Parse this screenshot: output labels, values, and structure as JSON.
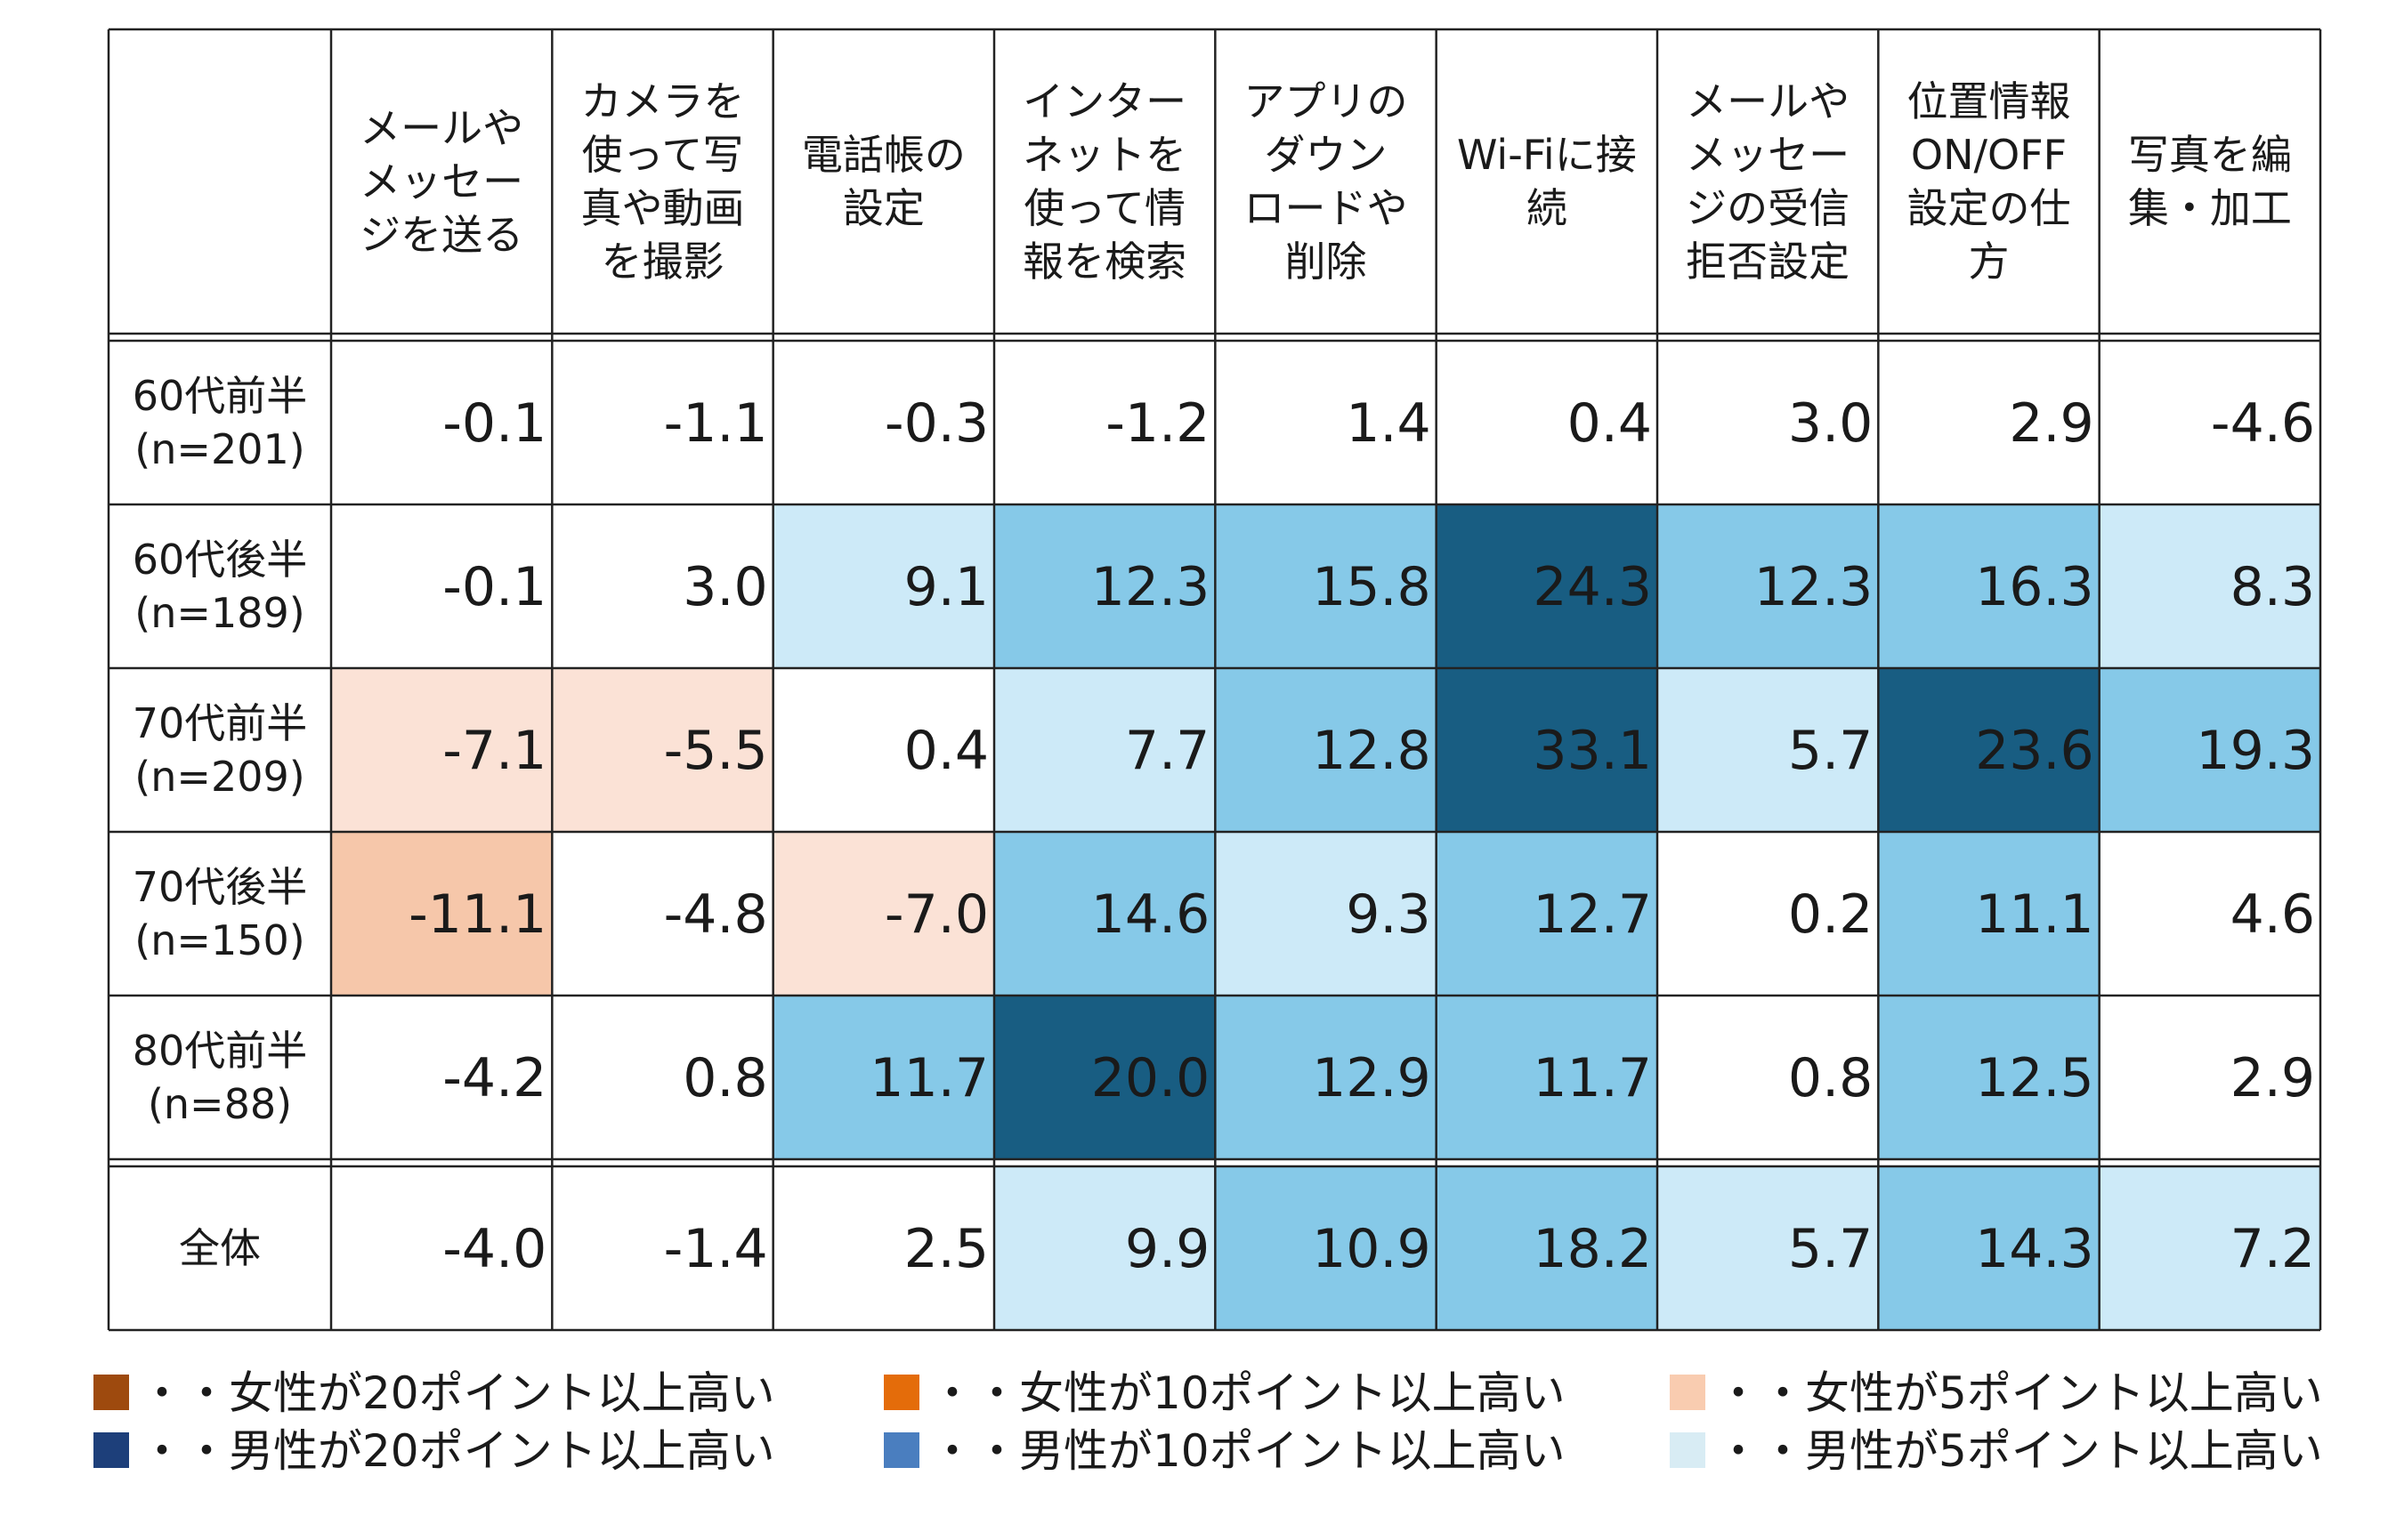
{
  "chart_data": {
    "type": "heatmap",
    "columns": [
      [
        "メールや",
        "メッセー",
        "ジを送る"
      ],
      [
        "カメラを",
        "使って写",
        "真や動画",
        "を撮影"
      ],
      [
        "電話帳の",
        "設定"
      ],
      [
        "インター",
        "ネットを",
        "使って情",
        "報を検索"
      ],
      [
        "アプリの",
        "ダウン",
        "ロードや",
        "削除"
      ],
      [
        "Wi-Fiに接",
        "続"
      ],
      [
        "メールや",
        "メッセー",
        "ジの受信",
        "拒否設定"
      ],
      [
        "位置情報",
        "ON/OFF",
        "設定の仕",
        "方"
      ],
      [
        "写真を編",
        "集・加工"
      ]
    ],
    "rows": [
      {
        "label": [
          "60代前半",
          "(n=201)"
        ],
        "values": [
          "-0.1",
          "-1.1",
          "-0.3",
          "-1.2",
          "1.4",
          "0.4",
          "3.0",
          "2.9",
          "-4.6"
        ]
      },
      {
        "label": [
          "60代後半",
          "(n=189)"
        ],
        "values": [
          "-0.1",
          "3.0",
          "9.1",
          "12.3",
          "15.8",
          "24.3",
          "12.3",
          "16.3",
          "8.3"
        ]
      },
      {
        "label": [
          "70代前半",
          "(n=209)"
        ],
        "values": [
          "-7.1",
          "-5.5",
          "0.4",
          "7.7",
          "12.8",
          "33.1",
          "5.7",
          "23.6",
          "19.3"
        ]
      },
      {
        "label": [
          "70代後半",
          "(n=150)"
        ],
        "values": [
          "-11.1",
          "-4.8",
          "-7.0",
          "14.6",
          "9.3",
          "12.7",
          "0.2",
          "11.1",
          "4.6"
        ]
      },
      {
        "label": [
          "80代前半",
          "(n=88)"
        ],
        "values": [
          "-4.2",
          "0.8",
          "11.7",
          "20.0",
          "12.9",
          "11.7",
          "0.8",
          "12.5",
          "2.9"
        ]
      }
    ],
    "total": {
      "label": [
        "全体"
      ],
      "values": [
        "-4.0",
        "-1.4",
        "2.5",
        "9.9",
        "10.9",
        "18.2",
        "5.7",
        "14.3",
        "7.2"
      ]
    },
    "colors": {
      "female20": "#9e4a0e",
      "female10": "#e46c0a",
      "female5": "#f9ccb0",
      "male20": "#1d3f7a",
      "male10": "#4a7ebf",
      "male5": "#d8ecf4"
    },
    "cell_colors": {
      "female10": "#f6c7aa",
      "female5": "#fbe2d6",
      "male20": "#185d82",
      "male10": "#86c9e8",
      "male5": "#cdeaf8",
      "text_light": "#ffffff",
      "text_dark": "#1a1a1a"
    },
    "legend": [
      {
        "color_key": "female20",
        "label": "・・女性が20ポイント以上高い"
      },
      {
        "color_key": "female10",
        "label": "・・女性が10ポイント以上高い"
      },
      {
        "color_key": "female5",
        "label": "・・女性が5ポイント以上高い"
      },
      {
        "color_key": "male20",
        "label": "・・男性が20ポイント以上高い"
      },
      {
        "color_key": "male10",
        "label": "・・男性が10ポイント以上高い"
      },
      {
        "color_key": "male5",
        "label": "・・男性が5ポイント以上高い"
      }
    ]
  }
}
